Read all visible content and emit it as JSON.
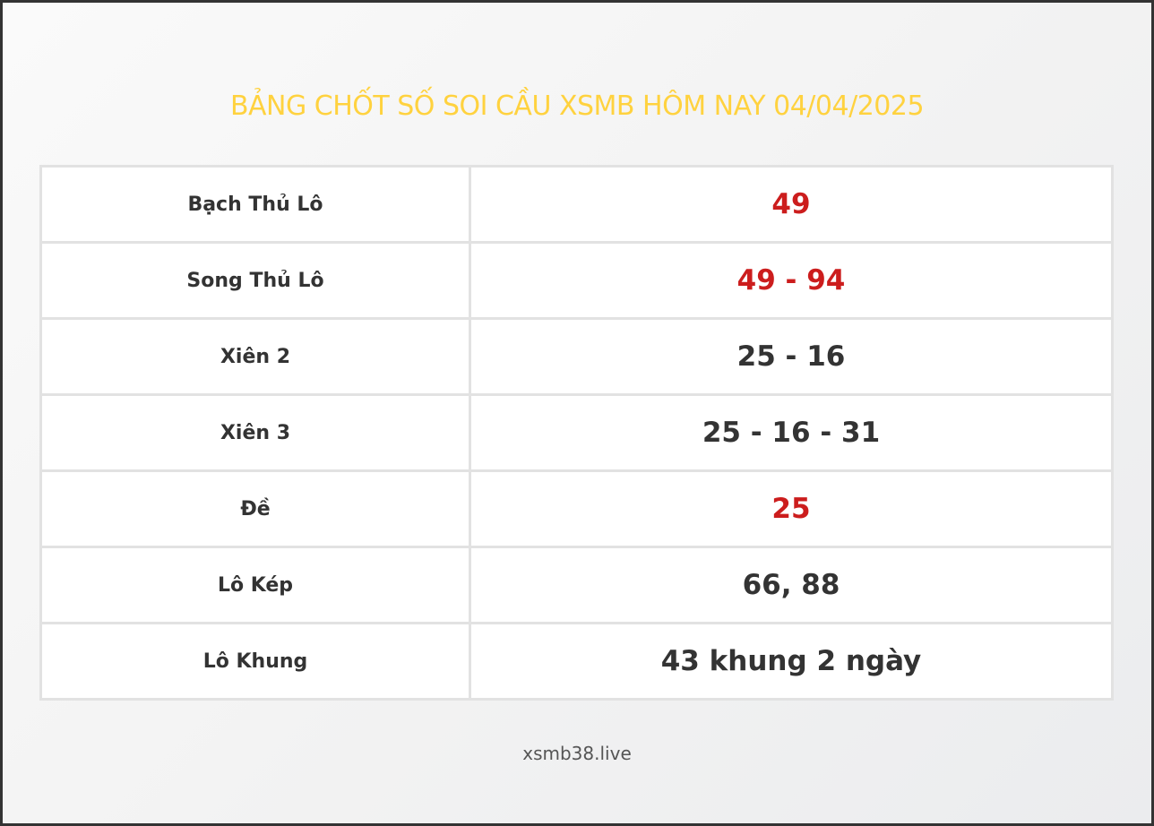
{
  "title": "BẢNG CHỐT SỐ SOI CẦU XSMB HÔM NAY 04/04/2025",
  "rows": [
    {
      "label": "Bạch Thủ Lô",
      "value": "49",
      "highlight": true
    },
    {
      "label": "Song Thủ Lô",
      "value": "49 - 94",
      "highlight": true
    },
    {
      "label": "Xiên 2",
      "value": "25 - 16",
      "highlight": false
    },
    {
      "label": "Xiên 3",
      "value": "25 - 16 - 31",
      "highlight": false
    },
    {
      "label": "Đề",
      "value": "25",
      "highlight": true
    },
    {
      "label": "Lô Kép",
      "value": "66, 88",
      "highlight": false
    },
    {
      "label": "Lô Khung",
      "value": "43 khung 2 ngày",
      "highlight": false
    }
  ],
  "footer": "xsmb38.live",
  "colors": {
    "title": "#ffd23f",
    "highlight": "#cc1d1d",
    "text": "#333333"
  }
}
